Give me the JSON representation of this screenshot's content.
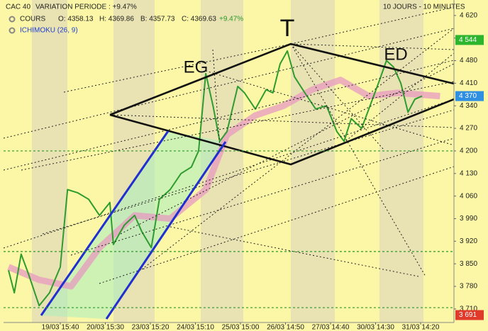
{
  "chart_data": {
    "type": "line",
    "title": "CAC 40",
    "subtitle": "VARIATION PERIODE : +9.47%",
    "period": "10 JOURS - 10 MINUTES",
    "ohlc": [
      "O: 4358.13",
      "H: 4369.86",
      "B: 4357.73",
      "C: 4369.63"
    ],
    "change": "+9.47%",
    "annotations": [
      "T",
      "EG",
      "ED"
    ],
    "series": [
      {
        "name": "COURS",
        "color": "#2e9c2e",
        "x": [
          -1.15,
          -1.02,
          -0.87,
          -0.71,
          -0.47,
          -0.24,
          0,
          0.16,
          0.39,
          0.63,
          0.87,
          1.1,
          1.18,
          1.42,
          1.65,
          1.81,
          2.02,
          2.2,
          2.44,
          2.68,
          2.91,
          3.07,
          3.23,
          3.39,
          3.54,
          3.7,
          3.94,
          4.09,
          4.33,
          4.57,
          4.72,
          4.88,
          5.04,
          5.2,
          5.43,
          5.67,
          5.91,
          6.14,
          6.3,
          6.46,
          6.69,
          6.85,
          7.09,
          7.24,
          7.4,
          7.56,
          7.72,
          7.87,
          8.03
        ],
        "values": [
          3830,
          3760,
          3880,
          3820,
          3720,
          3760,
          3840,
          4080,
          4070,
          4050,
          4000,
          4040,
          3910,
          3970,
          4000,
          3950,
          3900,
          4050,
          4080,
          4130,
          4150,
          4200,
          4440,
          4340,
          4230,
          4260,
          4400,
          4380,
          4330,
          4390,
          4380,
          4470,
          4510,
          4430,
          4380,
          4330,
          4340,
          4260,
          4230,
          4300,
          4270,
          4330,
          4420,
          4480,
          4460,
          4410,
          4320,
          4360,
          4370
        ]
      },
      {
        "name": "ICHIMOKU (26, 9)",
        "color": "#e79ac0",
        "x": [
          -1.15,
          -0.47,
          0.24,
          0.87,
          1.65,
          2.44,
          3.23,
          3.7,
          4.33,
          4.96,
          5.59,
          6.22,
          6.85,
          7.48,
          8.43
        ],
        "values": [
          3840,
          3800,
          3780,
          3900,
          4000,
          3990,
          4080,
          4250,
          4310,
          4340,
          4390,
          4420,
          4370,
          4380,
          4370
        ]
      }
    ],
    "xlim": [
      -1.26,
      8.74
    ],
    "xticks": [
      {
        "value": 0,
        "label": "19/03 15:40"
      },
      {
        "value": 1,
        "label": "20/03 15:30"
      },
      {
        "value": 2,
        "label": "23/03 15:20"
      },
      {
        "value": 3,
        "label": "24/03 15:10"
      },
      {
        "value": 4,
        "label": "25/03 15:00"
      },
      {
        "value": 5,
        "label": "26/03 14:50"
      },
      {
        "value": 6,
        "label": "27/03 14:40"
      },
      {
        "value": 7,
        "label": "30/03 14:30"
      },
      {
        "value": 8,
        "label": "31/03 14:20"
      }
    ],
    "ylim": [
      3668,
      4668
    ],
    "yticks": [
      {
        "value": 3710,
        "label": "3 710"
      },
      {
        "value": 3780,
        "label": "3 780"
      },
      {
        "value": 3850,
        "label": "3 850"
      },
      {
        "value": 3920,
        "label": "3 920"
      },
      {
        "value": 3990,
        "label": "3 990"
      },
      {
        "value": 4060,
        "label": "4 060"
      },
      {
        "value": 4130,
        "label": "4 130"
      },
      {
        "value": 4200,
        "label": "4 200"
      },
      {
        "value": 4270,
        "label": "4 270"
      },
      {
        "value": 4340,
        "label": "4 340"
      },
      {
        "value": 4410,
        "label": "4 410"
      },
      {
        "value": 4480,
        "label": "4 480"
      },
      {
        "value": 4550,
        "label": "4 550"
      },
      {
        "value": 4620,
        "label": "4 620"
      }
    ],
    "price_markers": [
      {
        "value": 4544,
        "label": "4 544",
        "color": "#2db52d"
      },
      {
        "value": 4370,
        "label": "4 370",
        "color": "#2f8fe0"
      },
      {
        "value": 3691,
        "label": "3 691",
        "color": "#e03a2a"
      }
    ],
    "hlines": [
      4200,
      3888,
      3714
    ],
    "hline_color": "#2a9a2a"
  }
}
